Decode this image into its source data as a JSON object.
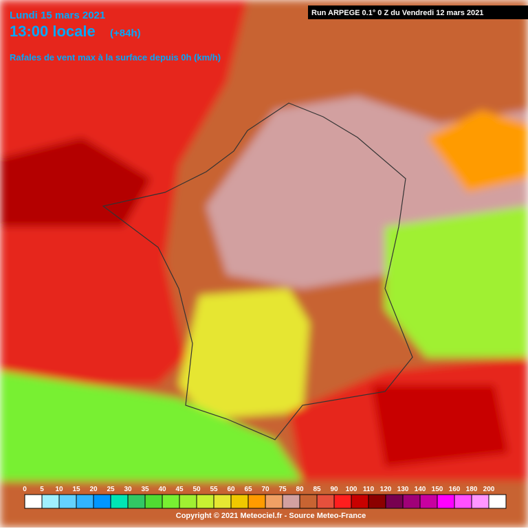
{
  "header": {
    "date": "Lundi 15 mars 2021",
    "time": "13:00 locale",
    "lead": "(+84h)",
    "subtitle": "Rafales de vent max à la surface depuis 0h (km/h)",
    "run": "Run ARPEGE 0.1° 0 Z du Vendredi 12 mars 2021"
  },
  "legend": {
    "labels": [
      0,
      5,
      10,
      15,
      20,
      25,
      30,
      35,
      40,
      45,
      50,
      55,
      60,
      65,
      70,
      75,
      80,
      85,
      90,
      100,
      110,
      120,
      130,
      140,
      150,
      160,
      180,
      200
    ],
    "colors": [
      "#ffffff",
      "#a0f0ff",
      "#64d2ff",
      "#32b4ff",
      "#0096ff",
      "#00e6b4",
      "#32c864",
      "#50dc32",
      "#78f032",
      "#a0f032",
      "#c8f032",
      "#e6e632",
      "#f0c800",
      "#ff9b00",
      "#f0a064",
      "#d2a0a0",
      "#c86432",
      "#e6503c",
      "#ff1e1e",
      "#c80000",
      "#8c0000",
      "#780050",
      "#a00078",
      "#c800a0",
      "#ff00ff",
      "#ff50ff",
      "#ff96ff",
      "#ffffff"
    ]
  },
  "footer": {
    "copyright": "Copyright © 2021 Meteociel.fr - Source Meteo-France"
  }
}
